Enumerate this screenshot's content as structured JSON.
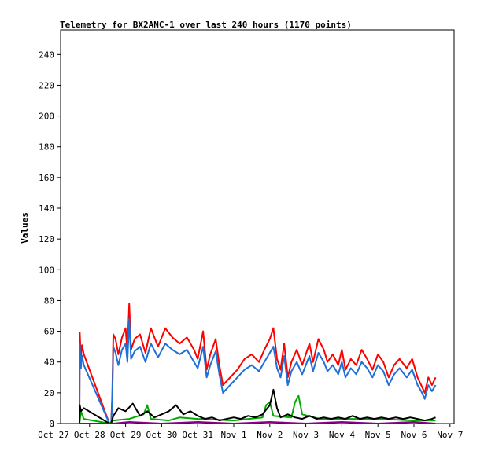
{
  "chart_data": {
    "type": "line",
    "title": "Telemetry for BX2ANC-1 over last 240 hours (1170 points)",
    "xlabel": "",
    "ylabel": "Values",
    "ylim": [
      0,
      256
    ],
    "y_ticks": [
      0,
      20,
      40,
      60,
      80,
      100,
      120,
      140,
      160,
      180,
      200,
      220,
      240
    ],
    "x_ticks": [
      "Oct 27",
      "Oct 28",
      "Oct 29",
      "Oct 30",
      "Oct 31",
      "Nov 1",
      "Nov 2",
      "Nov 3",
      "Nov 4",
      "Nov 5",
      "Nov 6",
      "Nov 7"
    ],
    "xlim": [
      0,
      11.5
    ],
    "grid": false,
    "legend": "none",
    "series": [
      {
        "color": "#ff0000",
        "points": [
          [
            0.72,
            5
          ],
          [
            0.73,
            59
          ],
          [
            0.76,
            42
          ],
          [
            0.79,
            51
          ],
          [
            0.84,
            45
          ],
          [
            1.55,
            0
          ],
          [
            1.6,
            0
          ],
          [
            1.63,
            20
          ],
          [
            1.66,
            58
          ],
          [
            1.72,
            55
          ],
          [
            1.8,
            45
          ],
          [
            1.9,
            56
          ],
          [
            2.0,
            62
          ],
          [
            2.05,
            46
          ],
          [
            2.1,
            78
          ],
          [
            2.15,
            48
          ],
          [
            2.25,
            55
          ],
          [
            2.4,
            58
          ],
          [
            2.55,
            46
          ],
          [
            2.7,
            62
          ],
          [
            2.9,
            50
          ],
          [
            3.1,
            62
          ],
          [
            3.3,
            56
          ],
          [
            3.5,
            52
          ],
          [
            3.7,
            56
          ],
          [
            3.9,
            48
          ],
          [
            4.0,
            42
          ],
          [
            4.15,
            60
          ],
          [
            4.25,
            35
          ],
          [
            4.35,
            45
          ],
          [
            4.5,
            55
          ],
          [
            4.6,
            38
          ],
          [
            4.7,
            25
          ],
          [
            4.9,
            30
          ],
          [
            5.1,
            35
          ],
          [
            5.3,
            42
          ],
          [
            5.5,
            45
          ],
          [
            5.7,
            40
          ],
          [
            5.85,
            48
          ],
          [
            6.0,
            55
          ],
          [
            6.1,
            62
          ],
          [
            6.2,
            42
          ],
          [
            6.3,
            35
          ],
          [
            6.4,
            52
          ],
          [
            6.5,
            30
          ],
          [
            6.6,
            40
          ],
          [
            6.75,
            48
          ],
          [
            6.9,
            38
          ],
          [
            7.0,
            45
          ],
          [
            7.1,
            52
          ],
          [
            7.2,
            40
          ],
          [
            7.35,
            55
          ],
          [
            7.5,
            48
          ],
          [
            7.6,
            40
          ],
          [
            7.75,
            45
          ],
          [
            7.9,
            38
          ],
          [
            8.0,
            48
          ],
          [
            8.1,
            35
          ],
          [
            8.25,
            42
          ],
          [
            8.4,
            38
          ],
          [
            8.55,
            48
          ],
          [
            8.7,
            42
          ],
          [
            8.85,
            35
          ],
          [
            9.0,
            45
          ],
          [
            9.15,
            40
          ],
          [
            9.3,
            30
          ],
          [
            9.45,
            38
          ],
          [
            9.6,
            42
          ],
          [
            9.8,
            36
          ],
          [
            9.95,
            42
          ],
          [
            10.1,
            30
          ],
          [
            10.2,
            25
          ],
          [
            10.3,
            20
          ],
          [
            10.4,
            30
          ],
          [
            10.5,
            25
          ],
          [
            10.6,
            30
          ]
        ]
      },
      {
        "color": "#1f6fd6",
        "points": [
          [
            0.72,
            5
          ],
          [
            0.73,
            52
          ],
          [
            0.76,
            36
          ],
          [
            0.79,
            44
          ],
          [
            0.84,
            38
          ],
          [
            1.55,
            0
          ],
          [
            1.6,
            0
          ],
          [
            1.63,
            17
          ],
          [
            1.66,
            50
          ],
          [
            1.72,
            46
          ],
          [
            1.8,
            38
          ],
          [
            1.9,
            48
          ],
          [
            2.0,
            52
          ],
          [
            2.05,
            40
          ],
          [
            2.1,
            68
          ],
          [
            2.15,
            42
          ],
          [
            2.25,
            47
          ],
          [
            2.4,
            50
          ],
          [
            2.55,
            40
          ],
          [
            2.7,
            52
          ],
          [
            2.9,
            43
          ],
          [
            3.1,
            52
          ],
          [
            3.3,
            48
          ],
          [
            3.5,
            45
          ],
          [
            3.7,
            48
          ],
          [
            3.9,
            40
          ],
          [
            4.0,
            36
          ],
          [
            4.15,
            50
          ],
          [
            4.25,
            30
          ],
          [
            4.35,
            38
          ],
          [
            4.5,
            47
          ],
          [
            4.6,
            32
          ],
          [
            4.7,
            20
          ],
          [
            4.9,
            25
          ],
          [
            5.1,
            30
          ],
          [
            5.3,
            35
          ],
          [
            5.5,
            38
          ],
          [
            5.7,
            34
          ],
          [
            5.85,
            40
          ],
          [
            6.0,
            46
          ],
          [
            6.1,
            50
          ],
          [
            6.2,
            36
          ],
          [
            6.3,
            30
          ],
          [
            6.4,
            44
          ],
          [
            6.5,
            25
          ],
          [
            6.6,
            34
          ],
          [
            6.75,
            40
          ],
          [
            6.9,
            32
          ],
          [
            7.0,
            38
          ],
          [
            7.1,
            44
          ],
          [
            7.2,
            34
          ],
          [
            7.35,
            46
          ],
          [
            7.5,
            40
          ],
          [
            7.6,
            34
          ],
          [
            7.75,
            38
          ],
          [
            7.9,
            32
          ],
          [
            8.0,
            40
          ],
          [
            8.1,
            30
          ],
          [
            8.25,
            36
          ],
          [
            8.4,
            32
          ],
          [
            8.55,
            40
          ],
          [
            8.7,
            36
          ],
          [
            8.85,
            30
          ],
          [
            9.0,
            38
          ],
          [
            9.15,
            34
          ],
          [
            9.3,
            25
          ],
          [
            9.45,
            32
          ],
          [
            9.6,
            36
          ],
          [
            9.8,
            30
          ],
          [
            9.95,
            35
          ],
          [
            10.1,
            25
          ],
          [
            10.2,
            21
          ],
          [
            10.3,
            16
          ],
          [
            10.4,
            25
          ],
          [
            10.5,
            21
          ],
          [
            10.6,
            25
          ]
        ]
      },
      {
        "color": "#00aa00",
        "points": [
          [
            0.72,
            0
          ],
          [
            0.76,
            8
          ],
          [
            0.84,
            3
          ],
          [
            1.55,
            0
          ],
          [
            1.66,
            2
          ],
          [
            2.1,
            3
          ],
          [
            2.5,
            6
          ],
          [
            2.6,
            12
          ],
          [
            2.7,
            3
          ],
          [
            3.2,
            2
          ],
          [
            3.5,
            4
          ],
          [
            4.0,
            3
          ],
          [
            5.0,
            2
          ],
          [
            5.8,
            4
          ],
          [
            5.9,
            12
          ],
          [
            6.0,
            14
          ],
          [
            6.1,
            5
          ],
          [
            6.6,
            4
          ],
          [
            6.7,
            14
          ],
          [
            6.8,
            18
          ],
          [
            6.9,
            6
          ],
          [
            7.4,
            3
          ],
          [
            8.0,
            3
          ],
          [
            9.0,
            3
          ],
          [
            10.0,
            2
          ],
          [
            10.6,
            2
          ]
        ]
      },
      {
        "color": "#000000",
        "points": [
          [
            0.72,
            0
          ],
          [
            0.73,
            12
          ],
          [
            0.76,
            8
          ],
          [
            0.84,
            10
          ],
          [
            1.55,
            0
          ],
          [
            1.6,
            0
          ],
          [
            1.66,
            5
          ],
          [
            1.8,
            10
          ],
          [
            2.0,
            8
          ],
          [
            2.2,
            13
          ],
          [
            2.4,
            5
          ],
          [
            2.6,
            8
          ],
          [
            2.8,
            4
          ],
          [
            3.0,
            6
          ],
          [
            3.2,
            8
          ],
          [
            3.4,
            12
          ],
          [
            3.6,
            6
          ],
          [
            3.8,
            8
          ],
          [
            4.0,
            5
          ],
          [
            4.2,
            3
          ],
          [
            4.4,
            4
          ],
          [
            4.6,
            2
          ],
          [
            4.8,
            3
          ],
          [
            5.0,
            4
          ],
          [
            5.2,
            3
          ],
          [
            5.4,
            5
          ],
          [
            5.6,
            4
          ],
          [
            5.8,
            6
          ],
          [
            6.0,
            12
          ],
          [
            6.1,
            22
          ],
          [
            6.2,
            10
          ],
          [
            6.3,
            4
          ],
          [
            6.5,
            6
          ],
          [
            6.7,
            4
          ],
          [
            6.9,
            3
          ],
          [
            7.1,
            5
          ],
          [
            7.3,
            3
          ],
          [
            7.5,
            4
          ],
          [
            7.7,
            3
          ],
          [
            7.9,
            4
          ],
          [
            8.1,
            3
          ],
          [
            8.3,
            5
          ],
          [
            8.5,
            3
          ],
          [
            8.7,
            4
          ],
          [
            8.9,
            3
          ],
          [
            9.1,
            4
          ],
          [
            9.3,
            3
          ],
          [
            9.5,
            4
          ],
          [
            9.7,
            3
          ],
          [
            9.9,
            4
          ],
          [
            10.1,
            3
          ],
          [
            10.3,
            2
          ],
          [
            10.5,
            3
          ],
          [
            10.6,
            4
          ]
        ]
      },
      {
        "color": "#880088",
        "points": [
          [
            0.72,
            0
          ],
          [
            1.55,
            0
          ],
          [
            1.66,
            0
          ],
          [
            2.1,
            1
          ],
          [
            3.0,
            0
          ],
          [
            4.0,
            1
          ],
          [
            5.0,
            0
          ],
          [
            6.0,
            1
          ],
          [
            7.0,
            0
          ],
          [
            8.0,
            1
          ],
          [
            9.0,
            0
          ],
          [
            10.0,
            1
          ],
          [
            10.6,
            0
          ]
        ]
      }
    ]
  }
}
